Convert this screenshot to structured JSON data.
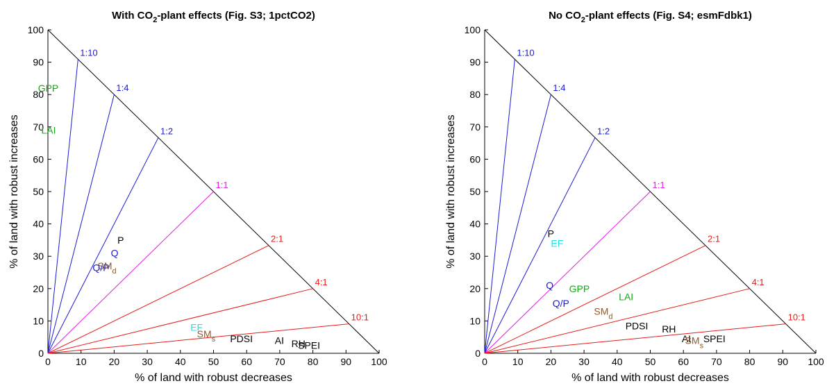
{
  "colors": {
    "blue": "#1a1ad6",
    "magenta": "#e619e6",
    "red": "#e61a1a",
    "black": "#000000",
    "green": "#1aa51a",
    "cyan": "#1ae6e6",
    "brown": "#8c5a2c"
  },
  "chart_data": [
    {
      "type": "scatter",
      "title": "With CO2-plant effects (Fig. S3; 1pctCO2)",
      "title_parts": {
        "pre": "With CO",
        "sub": "2",
        "post": "-plant effects (Fig. S3; 1pctCO2)"
      },
      "xlabel": "% of land with robust decreases",
      "ylabel": "% of land with robust increases",
      "xlim": [
        0,
        100
      ],
      "ylim": [
        0,
        100
      ],
      "xticks": [
        "0",
        "10",
        "20",
        "30",
        "40",
        "50",
        "60",
        "70",
        "80",
        "90",
        "100"
      ],
      "yticks": [
        "0",
        "10",
        "20",
        "30",
        "40",
        "50",
        "60",
        "70",
        "80",
        "90",
        "100"
      ],
      "ratio_lines": [
        {
          "label": "1:10",
          "dec": 1,
          "inc": 10,
          "color": "blue"
        },
        {
          "label": "1:4",
          "dec": 1,
          "inc": 4,
          "color": "blue"
        },
        {
          "label": "1:2",
          "dec": 1,
          "inc": 2,
          "color": "blue"
        },
        {
          "label": "1:1",
          "dec": 1,
          "inc": 1,
          "color": "magenta"
        },
        {
          "label": "2:1",
          "dec": 2,
          "inc": 1,
          "color": "red"
        },
        {
          "label": "4:1",
          "dec": 4,
          "inc": 1,
          "color": "red"
        },
        {
          "label": "10:1",
          "dec": 10,
          "inc": 1,
          "color": "red"
        }
      ],
      "points": [
        {
          "label": "GPP",
          "x": -3,
          "y": 82,
          "color": "green"
        },
        {
          "label": "LAI",
          "x": -2,
          "y": 69,
          "color": "green"
        },
        {
          "label": "P",
          "x": 21,
          "y": 35,
          "color": "black"
        },
        {
          "label": "Q",
          "x": 19,
          "y": 31,
          "color": "blue"
        },
        {
          "label": "Q/P",
          "x": 13.5,
          "y": 26.5,
          "color": "blue"
        },
        {
          "label": "SM",
          "sub": "d",
          "x": 15,
          "y": 27,
          "color": "brown"
        },
        {
          "label": "EF",
          "x": 43,
          "y": 8,
          "color": "cyan"
        },
        {
          "label": "SM",
          "sub": "s",
          "x": 45,
          "y": 6,
          "color": "brown"
        },
        {
          "label": "PDSI",
          "x": 55,
          "y": 4.5,
          "color": "black"
        },
        {
          "label": "AI",
          "x": 68.5,
          "y": 4,
          "color": "black"
        },
        {
          "label": "RH",
          "x": 73.5,
          "y": 3,
          "color": "black"
        },
        {
          "label": "SPEI",
          "x": 75.5,
          "y": 2.5,
          "color": "black"
        }
      ]
    },
    {
      "type": "scatter",
      "title": "No CO2-plant effects (Fig. S4; esmFdbk1)",
      "title_parts": {
        "pre": "No CO",
        "sub": "2",
        "post": "-plant effects (Fig. S4; esmFdbk1)"
      },
      "xlabel": "% of land with robust decreases",
      "ylabel": "% of land with robust increases",
      "xlim": [
        0,
        100
      ],
      "ylim": [
        0,
        100
      ],
      "xticks": [
        "0",
        "10",
        "20",
        "30",
        "40",
        "50",
        "60",
        "70",
        "80",
        "90",
        "100"
      ],
      "yticks": [
        "0",
        "10",
        "20",
        "30",
        "40",
        "50",
        "60",
        "70",
        "80",
        "90",
        "100"
      ],
      "ratio_lines": [
        {
          "label": "1:10",
          "dec": 1,
          "inc": 10,
          "color": "blue"
        },
        {
          "label": "1:4",
          "dec": 1,
          "inc": 4,
          "color": "blue"
        },
        {
          "label": "1:2",
          "dec": 1,
          "inc": 2,
          "color": "blue"
        },
        {
          "label": "1:1",
          "dec": 1,
          "inc": 1,
          "color": "magenta"
        },
        {
          "label": "2:1",
          "dec": 2,
          "inc": 1,
          "color": "red"
        },
        {
          "label": "4:1",
          "dec": 4,
          "inc": 1,
          "color": "red"
        },
        {
          "label": "10:1",
          "dec": 10,
          "inc": 1,
          "color": "red"
        }
      ],
      "points": [
        {
          "label": "P",
          "x": 19,
          "y": 37,
          "color": "black"
        },
        {
          "label": "EF",
          "x": 20,
          "y": 34,
          "color": "cyan"
        },
        {
          "label": "Q",
          "x": 18.5,
          "y": 21,
          "color": "blue"
        },
        {
          "label": "GPP",
          "x": 25.5,
          "y": 20,
          "color": "green"
        },
        {
          "label": "LAI",
          "x": 40.5,
          "y": 17.5,
          "color": "green"
        },
        {
          "label": "Q/P",
          "x": 20.5,
          "y": 15.5,
          "color": "blue"
        },
        {
          "label": "SM",
          "sub": "d",
          "x": 33,
          "y": 13,
          "color": "brown"
        },
        {
          "label": "PDSI",
          "x": 42.5,
          "y": 8.5,
          "color": "black"
        },
        {
          "label": "RH",
          "x": 53.5,
          "y": 7.5,
          "color": "black"
        },
        {
          "label": "AI",
          "x": 59.5,
          "y": 4.5,
          "color": "black"
        },
        {
          "label": "SM",
          "sub": "s",
          "x": 60.5,
          "y": 4,
          "color": "brown"
        },
        {
          "label": "SPEI",
          "x": 66,
          "y": 4.5,
          "color": "black"
        }
      ]
    }
  ]
}
